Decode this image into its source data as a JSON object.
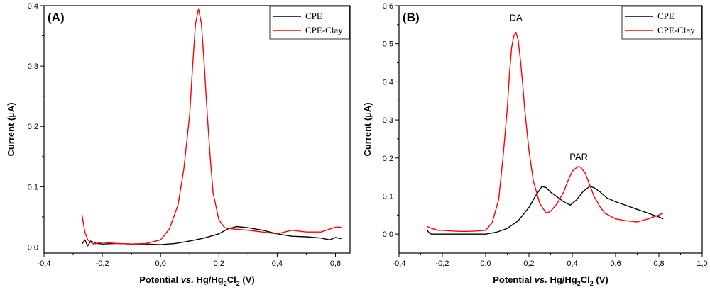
{
  "chart_data": [
    {
      "type": "line",
      "panel_label": "(A)",
      "xlabel_parts": [
        "Potential ",
        "vs.",
        " Hg/Hg",
        "2",
        "Cl",
        "2",
        " (V)"
      ],
      "ylabel_parts": [
        "Current (",
        "μ",
        "A)"
      ],
      "xlim": [
        -0.4,
        0.65
      ],
      "ylim": [
        -0.01,
        0.4
      ],
      "xticks": [
        -0.4,
        -0.2,
        0.0,
        0.2,
        0.4,
        0.6
      ],
      "xtick_labels": [
        "-0,4",
        "-0,2",
        "0,0",
        "0,2",
        "0,4",
        "0,6"
      ],
      "yticks": [
        0.0,
        0.1,
        0.2,
        0.3,
        0.4
      ],
      "ytick_labels": [
        "0,0",
        "0,1",
        "0,2",
        "0,3",
        "0,4"
      ],
      "legend": {
        "position": "top-right",
        "entries": [
          "CPE",
          "CPE-Clay"
        ]
      },
      "annotations": [],
      "series": [
        {
          "name": "CPE",
          "color": "#000000",
          "x": [
            -0.27,
            -0.26,
            -0.25,
            -0.24,
            -0.22,
            -0.2,
            -0.15,
            -0.1,
            -0.05,
            0.0,
            0.05,
            0.1,
            0.15,
            0.2,
            0.23,
            0.26,
            0.3,
            0.35,
            0.4,
            0.45,
            0.5,
            0.55,
            0.58,
            0.6,
            0.62
          ],
          "y": [
            0.005,
            0.012,
            0.002,
            0.01,
            0.006,
            0.005,
            0.006,
            0.005,
            0.005,
            0.004,
            0.006,
            0.01,
            0.015,
            0.022,
            0.03,
            0.034,
            0.032,
            0.028,
            0.022,
            0.018,
            0.017,
            0.015,
            0.012,
            0.016,
            0.014
          ]
        },
        {
          "name": "CPE-Clay",
          "color": "#ff0000",
          "x": [
            -0.27,
            -0.26,
            -0.25,
            -0.24,
            -0.23,
            -0.2,
            -0.15,
            -0.1,
            -0.05,
            0.0,
            0.03,
            0.06,
            0.08,
            0.1,
            0.11,
            0.12,
            0.13,
            0.14,
            0.15,
            0.16,
            0.17,
            0.18,
            0.2,
            0.22,
            0.25,
            0.3,
            0.35,
            0.4,
            0.45,
            0.5,
            0.55,
            0.6,
            0.62
          ],
          "y": [
            0.054,
            0.025,
            0.012,
            0.008,
            0.005,
            0.008,
            0.006,
            0.005,
            0.006,
            0.012,
            0.03,
            0.07,
            0.13,
            0.22,
            0.3,
            0.37,
            0.395,
            0.37,
            0.3,
            0.22,
            0.15,
            0.09,
            0.045,
            0.032,
            0.03,
            0.028,
            0.025,
            0.022,
            0.028,
            0.025,
            0.025,
            0.033,
            0.033
          ]
        }
      ]
    },
    {
      "type": "line",
      "panel_label": "(B)",
      "xlabel_parts": [
        "Potential ",
        "vs.",
        " Hg/Hg",
        "2",
        "Cl",
        "2",
        " (V)"
      ],
      "ylabel_parts": [
        "Current (",
        "μ",
        "A)"
      ],
      "xlim": [
        -0.4,
        1.0
      ],
      "ylim": [
        -0.05,
        0.6
      ],
      "xticks": [
        -0.4,
        -0.2,
        0.0,
        0.2,
        0.4,
        0.6,
        0.8,
        1.0
      ],
      "xtick_labels": [
        "-0,4",
        "-0,2",
        "0,0",
        "0,2",
        "0,4",
        "0,6",
        "0,8",
        "1,0"
      ],
      "yticks": [
        0.0,
        0.1,
        0.2,
        0.3,
        0.4,
        0.5,
        0.6
      ],
      "ytick_labels": [
        "0,0",
        "0,1",
        "0,2",
        "0,3",
        "0,4",
        "0,5",
        "0,6"
      ],
      "legend": {
        "position": "top-right",
        "entries": [
          "CPE",
          "CPE-Clay"
        ]
      },
      "annotations": [
        {
          "text": "DA",
          "x": 0.14,
          "y": 0.56
        },
        {
          "text": "PAR",
          "x": 0.43,
          "y": 0.195
        }
      ],
      "series": [
        {
          "name": "CPE",
          "color": "#000000",
          "x": [
            -0.27,
            -0.26,
            -0.25,
            -0.2,
            -0.1,
            0.0,
            0.05,
            0.1,
            0.15,
            0.2,
            0.23,
            0.26,
            0.28,
            0.3,
            0.33,
            0.36,
            0.39,
            0.42,
            0.45,
            0.48,
            0.5,
            0.53,
            0.56,
            0.6,
            0.65,
            0.7,
            0.75,
            0.8,
            0.82
          ],
          "y": [
            0.01,
            0.003,
            0.0,
            0.0,
            0.0,
            0.0,
            0.005,
            0.015,
            0.035,
            0.07,
            0.1,
            0.125,
            0.122,
            0.11,
            0.098,
            0.085,
            0.076,
            0.09,
            0.112,
            0.125,
            0.122,
            0.11,
            0.095,
            0.085,
            0.075,
            0.065,
            0.055,
            0.045,
            0.04
          ]
        },
        {
          "name": "CPE-Clay",
          "color": "#ff0000",
          "x": [
            -0.27,
            -0.25,
            -0.22,
            -0.2,
            -0.15,
            -0.1,
            -0.05,
            0.0,
            0.03,
            0.06,
            0.08,
            0.1,
            0.11,
            0.12,
            0.13,
            0.14,
            0.15,
            0.16,
            0.17,
            0.18,
            0.2,
            0.22,
            0.25,
            0.28,
            0.3,
            0.33,
            0.36,
            0.38,
            0.4,
            0.42,
            0.43,
            0.44,
            0.46,
            0.48,
            0.5,
            0.53,
            0.55,
            0.6,
            0.65,
            0.7,
            0.75,
            0.8,
            0.82
          ],
          "y": [
            0.02,
            0.015,
            0.01,
            0.01,
            0.008,
            0.007,
            0.008,
            0.01,
            0.03,
            0.09,
            0.2,
            0.33,
            0.42,
            0.49,
            0.52,
            0.53,
            0.51,
            0.46,
            0.4,
            0.33,
            0.22,
            0.14,
            0.08,
            0.055,
            0.06,
            0.08,
            0.11,
            0.14,
            0.165,
            0.175,
            0.178,
            0.175,
            0.16,
            0.13,
            0.1,
            0.07,
            0.055,
            0.04,
            0.035,
            0.032,
            0.04,
            0.05,
            0.055
          ]
        }
      ]
    }
  ]
}
